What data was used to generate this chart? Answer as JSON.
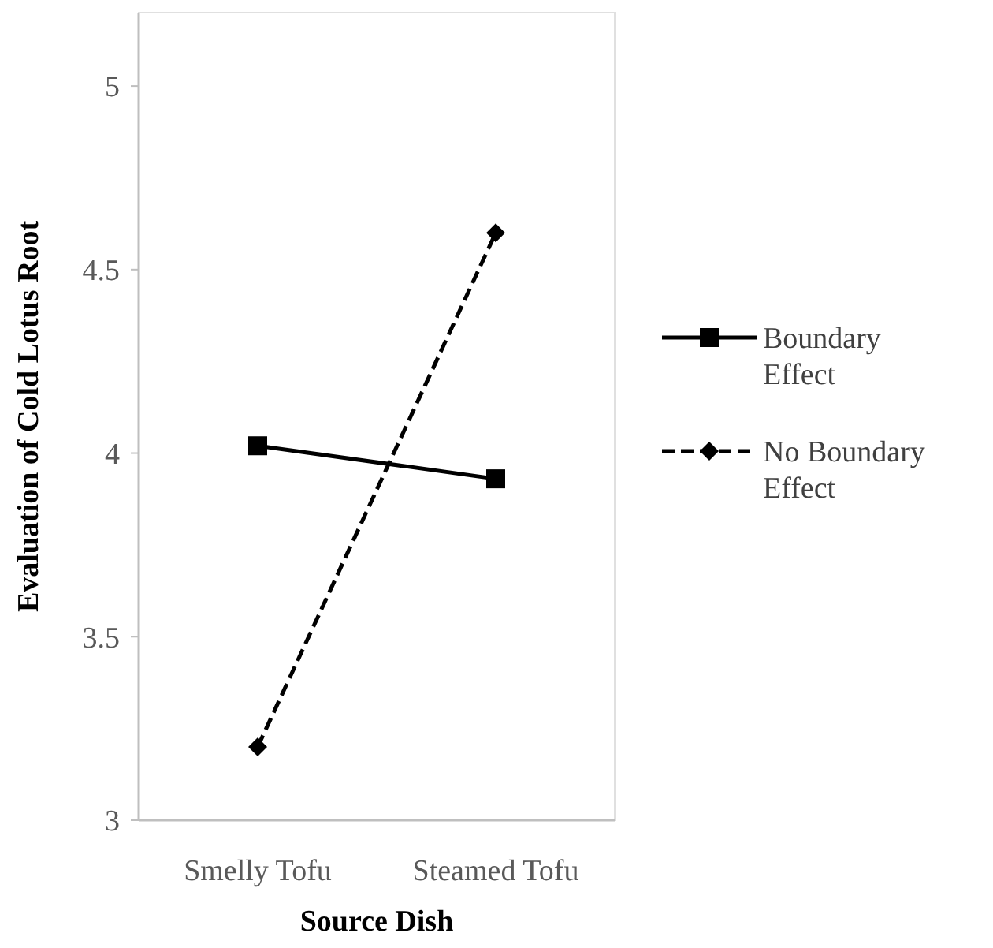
{
  "chart_data": {
    "type": "line",
    "xlabel": "Source Dish",
    "ylabel": "Evaluation of Cold Lotus Root",
    "categories": [
      "Smelly Tofu",
      "Steamed Tofu"
    ],
    "series": [
      {
        "name": "Boundary Effect",
        "color": "#000000",
        "values": [
          4.02,
          3.93
        ],
        "marker": "square",
        "line_style": "solid"
      },
      {
        "name": "No Boundary Effect",
        "color": "#000000",
        "values": [
          3.2,
          4.6
        ],
        "marker": "diamond",
        "line_style": "dashed"
      }
    ],
    "ylim": [
      3,
      5.2
    ],
    "yticks": [
      3,
      3.5,
      4,
      4.5,
      5
    ],
    "grid": false,
    "legend": "right"
  }
}
